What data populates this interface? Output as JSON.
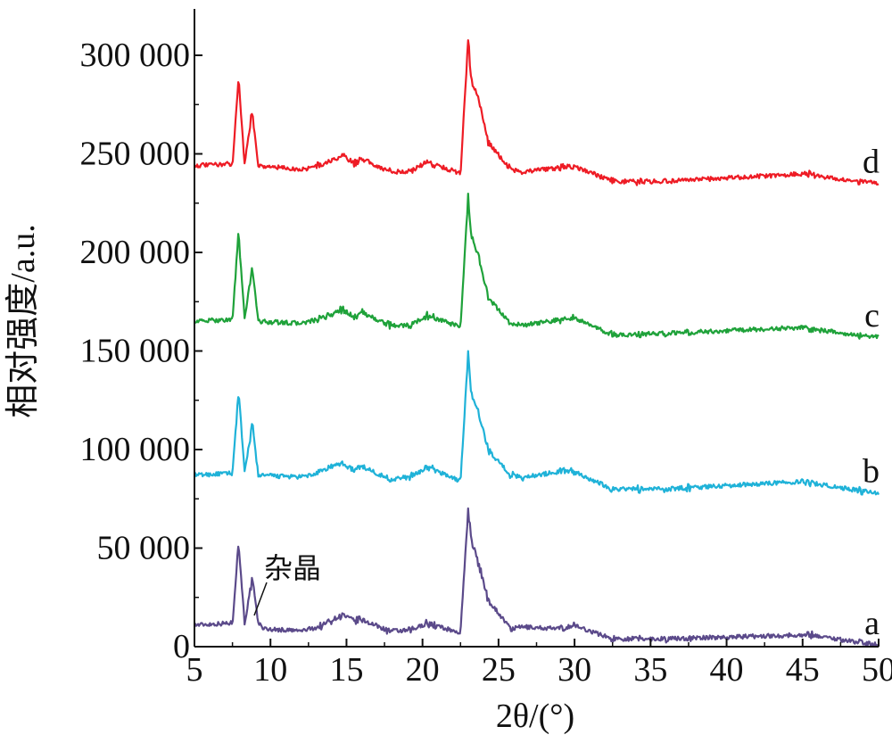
{
  "chart_data": {
    "type": "line",
    "xlabel": "2θ/(°)",
    "ylabel": "相对强度/a.u.",
    "xlim": [
      5,
      50
    ],
    "ylim": [
      0,
      315000
    ],
    "x_ticks": [
      "5",
      "10",
      "15",
      "20",
      "25",
      "30",
      "35",
      "40",
      "45",
      "50"
    ],
    "y_ticks": [
      "0",
      "50 000",
      "100 000",
      "150 000",
      "200 000",
      "250 000",
      "300 000"
    ],
    "grid": false,
    "legend": "none",
    "annotation": {
      "text": "杂晶",
      "x": 9.0,
      "y": 13000
    },
    "peaks_2theta": [
      7.9,
      8.8,
      13.2,
      13.9,
      14.7,
      15.6,
      15.9,
      17.8,
      19.2,
      20.3,
      20.7,
      23.0,
      23.2,
      23.8,
      24.3,
      25.8,
      26.6,
      29.2,
      29.9,
      32.5,
      34.2,
      36.0,
      37.5,
      45.3,
      45.6,
      48.8
    ],
    "series": [
      {
        "name": "a",
        "color": "#5b4a8a",
        "x": [
          5,
          7.5,
          7.9,
          8.3,
          8.8,
          9.2,
          9.6,
          12,
          13.2,
          13.9,
          14.7,
          15.6,
          15.9,
          17.8,
          19.2,
          20.3,
          20.7,
          22.5,
          23.0,
          23.2,
          23.8,
          24.3,
          25.8,
          26.6,
          29.2,
          29.9,
          32.5,
          36.0,
          45.3,
          45.6,
          48.8,
          50
        ],
        "y": [
          11000,
          12000,
          53000,
          12000,
          34000,
          12000,
          9000,
          8000,
          10000,
          13000,
          16000,
          13000,
          14000,
          8000,
          8000,
          12000,
          11000,
          7000,
          70000,
          55000,
          39000,
          24000,
          9000,
          10000,
          9000,
          11000,
          4000,
          4000,
          6000,
          6000,
          2000,
          1000
        ]
      },
      {
        "name": "b",
        "color": "#1fb2d8",
        "x": [
          5,
          7.5,
          7.9,
          8.3,
          8.8,
          9.2,
          12,
          13.2,
          13.9,
          14.7,
          15.6,
          15.9,
          17.8,
          19.2,
          20.3,
          20.7,
          22.5,
          23.0,
          23.2,
          23.8,
          24.3,
          25.8,
          26.6,
          29.2,
          29.9,
          32.5,
          36.0,
          45.3,
          45.6,
          48.8,
          50
        ],
        "y": [
          87000,
          88000,
          130000,
          88000,
          113000,
          87000,
          86000,
          88000,
          91000,
          93000,
          89000,
          92000,
          85000,
          86000,
          91000,
          90000,
          84000,
          149000,
          128000,
          116000,
          100000,
          87000,
          86000,
          89000,
          89000,
          80000,
          80000,
          84000,
          83000,
          79000,
          78000
        ]
      },
      {
        "name": "c",
        "color": "#1fa23a",
        "x": [
          5,
          7.5,
          7.9,
          8.3,
          8.8,
          9.2,
          12,
          13.2,
          13.9,
          14.7,
          15.6,
          15.9,
          17.8,
          19.2,
          20.3,
          20.7,
          22.5,
          23.0,
          23.2,
          23.8,
          24.3,
          25.8,
          26.6,
          29.2,
          29.9,
          32.5,
          36.0,
          45.3,
          45.6,
          48.8,
          50
        ],
        "y": [
          165000,
          166000,
          210000,
          166000,
          193000,
          165000,
          164000,
          166000,
          168000,
          171000,
          167000,
          170000,
          163000,
          163000,
          168000,
          167000,
          162000,
          228000,
          209000,
          195000,
          177000,
          164000,
          163000,
          166000,
          167000,
          158000,
          159000,
          162000,
          161000,
          158000,
          157000
        ]
      },
      {
        "name": "d",
        "color": "#ee1c25",
        "x": [
          5,
          7.5,
          7.9,
          8.3,
          8.8,
          9.2,
          12,
          13.2,
          13.9,
          14.7,
          15.6,
          15.9,
          17.8,
          19.2,
          20.3,
          20.7,
          22.5,
          23.0,
          23.2,
          23.8,
          24.3,
          25.8,
          26.6,
          29.2,
          29.9,
          32.5,
          36.0,
          45.3,
          45.6,
          48.8,
          50
        ],
        "y": [
          244000,
          245000,
          288000,
          245000,
          272000,
          244000,
          242000,
          244000,
          246000,
          249000,
          245000,
          248000,
          241000,
          241000,
          246000,
          245000,
          240000,
          309000,
          288000,
          275000,
          256000,
          242000,
          241000,
          243000,
          244000,
          236000,
          236000,
          240000,
          239000,
          236000,
          235000
        ]
      }
    ]
  }
}
